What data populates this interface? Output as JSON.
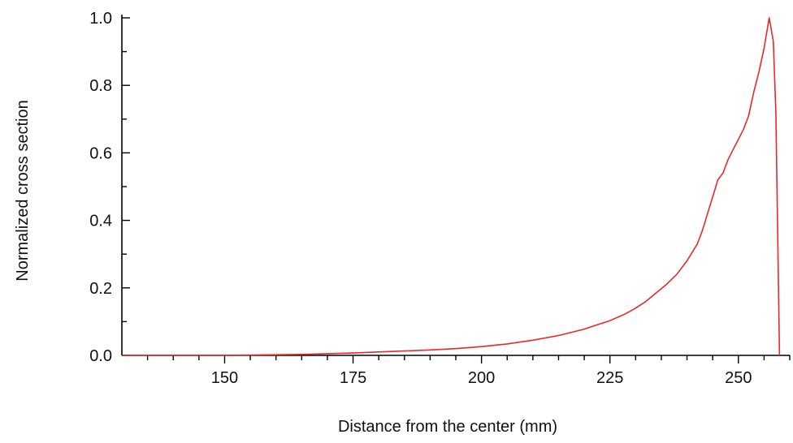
{
  "chart_data": {
    "type": "line",
    "xlabel": "Distance from the center (mm)",
    "ylabel": "Normalized cross section",
    "xlim": [
      130,
      260
    ],
    "ylim": [
      0,
      1.0
    ],
    "x_ticks": [
      150,
      175,
      200,
      225,
      250
    ],
    "x_tick_labels": [
      "150",
      "175",
      "200",
      "225",
      "250"
    ],
    "y_ticks": [
      0,
      0.2,
      0.4,
      0.6,
      0.8,
      1.0
    ],
    "y_tick_labels": [
      "0.0",
      "0.2",
      "0.4",
      "0.6",
      "0.8",
      "1.0"
    ],
    "grid": false,
    "series": [
      {
        "color": "#e8282a",
        "x": [
          130,
          150,
          165,
          170,
          175,
          180,
          185,
          190,
          195,
          200,
          205,
          210,
          215,
          218,
          220,
          222,
          225,
          228,
          230,
          232,
          234,
          236,
          238,
          240,
          242,
          243,
          244,
          245,
          246,
          247,
          248,
          249,
          250,
          251,
          252,
          253,
          254,
          255,
          256,
          256.8,
          257.3,
          258
        ],
        "y": [
          0.0,
          0.0,
          0.003,
          0.005,
          0.007,
          0.01,
          0.013,
          0.016,
          0.02,
          0.026,
          0.034,
          0.045,
          0.059,
          0.07,
          0.078,
          0.088,
          0.103,
          0.123,
          0.14,
          0.16,
          0.185,
          0.21,
          0.24,
          0.28,
          0.33,
          0.37,
          0.42,
          0.47,
          0.52,
          0.54,
          0.58,
          0.61,
          0.64,
          0.67,
          0.71,
          0.78,
          0.84,
          0.91,
          1.0,
          0.93,
          0.72,
          0.0
        ]
      }
    ]
  }
}
